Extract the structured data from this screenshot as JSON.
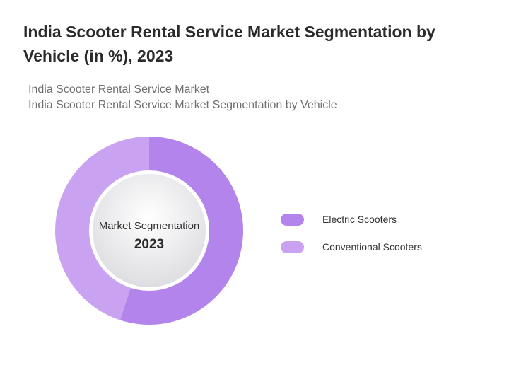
{
  "title": "India Scooter Rental Service Market Segmentation by Vehicle (in %), 2023",
  "subtitle_lines": [
    "India Scooter Rental Service Market",
    "India Scooter Rental Service Market Segmentation by Vehicle"
  ],
  "chart_data": {
    "type": "pie",
    "variant": "donut",
    "center_label": "Market Segmentation",
    "center_year": "2023",
    "legend_position": "right",
    "series": [
      {
        "name": "Electric Scooters",
        "value": 55,
        "color": "#b384ec"
      },
      {
        "name": "Conventional Scooters",
        "value": 45,
        "color": "#c9a2f2"
      }
    ]
  }
}
